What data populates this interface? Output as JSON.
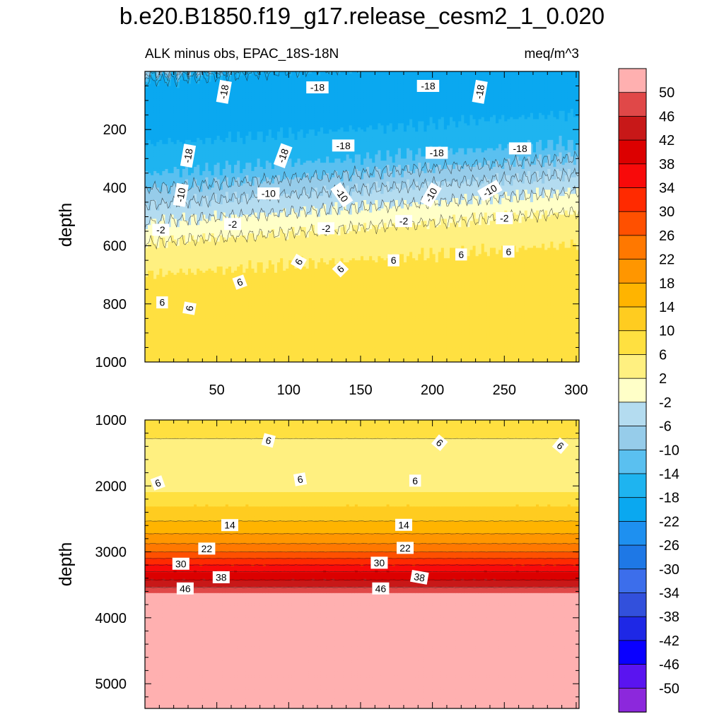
{
  "title": "b.e20.B1850.f19_g17.release_cesm2_1_0.020",
  "chart_data": {
    "type": "heatmap",
    "title": "b.e20.B1850.f19_g17.release_cesm2_1_0.020",
    "subtitle_left": "ALK minus obs, EPAC_18S-18N",
    "subtitle_right": "meq/m^3",
    "grid": false,
    "legend_placement": "right",
    "panels": [
      {
        "ylabel": "depth",
        "xlim": [
          0,
          302
        ],
        "ylim": [
          1000,
          0
        ],
        "xticks": [
          50,
          100,
          150,
          200,
          250,
          300
        ],
        "xtick_labels": [
          "50",
          "100",
          "150",
          "200",
          "250",
          "300"
        ],
        "yticks": [
          200,
          400,
          600,
          800,
          1000
        ],
        "ytick_labels": [
          "200",
          "400",
          "600",
          "800",
          "1000"
        ],
        "profile": [
          {
            "depth": 0,
            "value": -8
          },
          {
            "depth": 20,
            "value": -16
          },
          {
            "depth": 50,
            "value": -20
          },
          {
            "depth": 150,
            "value": -20
          },
          {
            "depth": 250,
            "value": -18
          },
          {
            "depth": 350,
            "value": -14
          },
          {
            "depth": 430,
            "value": -8
          },
          {
            "depth": 500,
            "value": -3
          },
          {
            "depth": 560,
            "value": 0
          },
          {
            "depth": 620,
            "value": 4
          },
          {
            "depth": 700,
            "value": 6
          },
          {
            "depth": 1000,
            "value": 8
          }
        ],
        "contour_labels": [
          {
            "x": 55,
            "depth": 70,
            "text": "-18",
            "angle": -80
          },
          {
            "x": 120,
            "depth": 55,
            "text": "-18",
            "angle": 0
          },
          {
            "x": 197,
            "depth": 50,
            "text": "-18",
            "angle": 0
          },
          {
            "x": 233,
            "depth": 70,
            "text": "-18",
            "angle": -80
          },
          {
            "x": 30,
            "depth": 290,
            "text": "-18",
            "angle": -80
          },
          {
            "x": 96,
            "depth": 290,
            "text": "-18",
            "angle": -70
          },
          {
            "x": 138,
            "depth": 255,
            "text": "-18",
            "angle": 0
          },
          {
            "x": 203,
            "depth": 280,
            "text": "-18",
            "angle": 0
          },
          {
            "x": 261,
            "depth": 265,
            "text": "-18",
            "angle": 0
          },
          {
            "x": 25,
            "depth": 425,
            "text": "-10",
            "angle": -80
          },
          {
            "x": 86,
            "depth": 420,
            "text": "-10",
            "angle": 0
          },
          {
            "x": 137,
            "depth": 425,
            "text": "-10",
            "angle": 55
          },
          {
            "x": 199,
            "depth": 425,
            "text": "-10",
            "angle": -60
          },
          {
            "x": 240,
            "depth": 410,
            "text": "-10",
            "angle": -30
          },
          {
            "x": 11,
            "depth": 545,
            "text": "-2",
            "angle": 0
          },
          {
            "x": 61,
            "depth": 525,
            "text": "-2",
            "angle": 0
          },
          {
            "x": 126,
            "depth": 540,
            "text": "-2",
            "angle": 0
          },
          {
            "x": 180,
            "depth": 515,
            "text": "-2",
            "angle": 0
          },
          {
            "x": 250,
            "depth": 505,
            "text": "-2",
            "angle": 0
          },
          {
            "x": 107,
            "depth": 655,
            "text": "6",
            "angle": -60
          },
          {
            "x": 136,
            "depth": 680,
            "text": "6",
            "angle": -45
          },
          {
            "x": 173,
            "depth": 650,
            "text": "6",
            "angle": 0
          },
          {
            "x": 220,
            "depth": 630,
            "text": "6",
            "angle": 0
          },
          {
            "x": 253,
            "depth": 620,
            "text": "6",
            "angle": 0
          },
          {
            "x": 66,
            "depth": 725,
            "text": "6",
            "angle": -20
          },
          {
            "x": 12,
            "depth": 795,
            "text": "6",
            "angle": 0
          },
          {
            "x": 31,
            "depth": 815,
            "text": "6",
            "angle": -80
          }
        ]
      },
      {
        "ylabel": "depth",
        "xlim": [
          0,
          302
        ],
        "ylim": [
          5375,
          1000
        ],
        "xticks": [
          50,
          100,
          150,
          200,
          250,
          300
        ],
        "xtick_labels": [],
        "yticks": [
          1000,
          2000,
          3000,
          4000,
          5000
        ],
        "ytick_labels": [
          "1000",
          "2000",
          "3000",
          "4000",
          "5000"
        ],
        "profile": [
          {
            "depth": 1000,
            "value": 8
          },
          {
            "depth": 1150,
            "value": 8
          },
          {
            "depth": 1350,
            "value": 5
          },
          {
            "depth": 1900,
            "value": 4.5
          },
          {
            "depth": 2100,
            "value": 6
          },
          {
            "depth": 2300,
            "value": 10
          },
          {
            "depth": 2650,
            "value": 16
          },
          {
            "depth": 2950,
            "value": 24
          },
          {
            "depth": 3150,
            "value": 32
          },
          {
            "depth": 3350,
            "value": 40
          },
          {
            "depth": 3500,
            "value": 44
          },
          {
            "depth": 3620,
            "value": 50
          },
          {
            "depth": 3650,
            "value": 54
          },
          {
            "depth": 5375,
            "value": 54
          }
        ],
        "contour_labels": [
          {
            "x": 86,
            "depth": 1310,
            "text": "6",
            "angle": 15
          },
          {
            "x": 205,
            "depth": 1345,
            "text": "6",
            "angle": 40
          },
          {
            "x": 289,
            "depth": 1390,
            "text": "6",
            "angle": 40
          },
          {
            "x": 9,
            "depth": 1955,
            "text": "6",
            "angle": -20
          },
          {
            "x": 108,
            "depth": 1900,
            "text": "6",
            "angle": -10
          },
          {
            "x": 188,
            "depth": 1920,
            "text": "6",
            "angle": 0
          },
          {
            "x": 59,
            "depth": 2595,
            "text": "14",
            "angle": 0
          },
          {
            "x": 180,
            "depth": 2590,
            "text": "14",
            "angle": 0
          },
          {
            "x": 43,
            "depth": 2950,
            "text": "22",
            "angle": 0
          },
          {
            "x": 181,
            "depth": 2940,
            "text": "22",
            "angle": 0
          },
          {
            "x": 25,
            "depth": 3180,
            "text": "30",
            "angle": 0
          },
          {
            "x": 163,
            "depth": 3165,
            "text": "30",
            "angle": 0
          },
          {
            "x": 53,
            "depth": 3385,
            "text": "38",
            "angle": 0
          },
          {
            "x": 191,
            "depth": 3385,
            "text": "38",
            "angle": 10
          },
          {
            "x": 28,
            "depth": 3555,
            "text": "46",
            "angle": 0
          },
          {
            "x": 164,
            "depth": 3555,
            "text": "46",
            "angle": 0
          }
        ]
      }
    ],
    "colorbar": {
      "labels": [
        "50",
        "46",
        "42",
        "38",
        "34",
        "30",
        "26",
        "22",
        "18",
        "14",
        "10",
        "6",
        "2",
        "-2",
        "-6",
        "-10",
        "-14",
        "-18",
        "-22",
        "-26",
        "-30",
        "-34",
        "-38",
        "-42",
        "-46",
        "-50"
      ],
      "levels_descending": [
        50,
        46,
        42,
        38,
        34,
        30,
        26,
        22,
        18,
        14,
        10,
        6,
        2,
        -2,
        -6,
        -10,
        -14,
        -18,
        -22,
        -26,
        -30,
        -34,
        -38,
        -42,
        -46,
        -50
      ],
      "colors_top_to_bottom": [
        "#FFB0B0",
        "#E04848",
        "#C81818",
        "#DC0000",
        "#F80A0A",
        "#FF2A00",
        "#FF5000",
        "#FF7800",
        "#FF9600",
        "#FFB400",
        "#FFCC20",
        "#FFE040",
        "#FFF080",
        "#FFFFC8",
        "#B4DCF0",
        "#96CCEA",
        "#5AC0F0",
        "#1EB4F0",
        "#0AA8F0",
        "#1E90F0",
        "#1E78E6",
        "#3C6EEB",
        "#3250DC",
        "#1E28E6",
        "#0A00FF",
        "#5A14F0",
        "#8C28DC"
      ]
    }
  }
}
